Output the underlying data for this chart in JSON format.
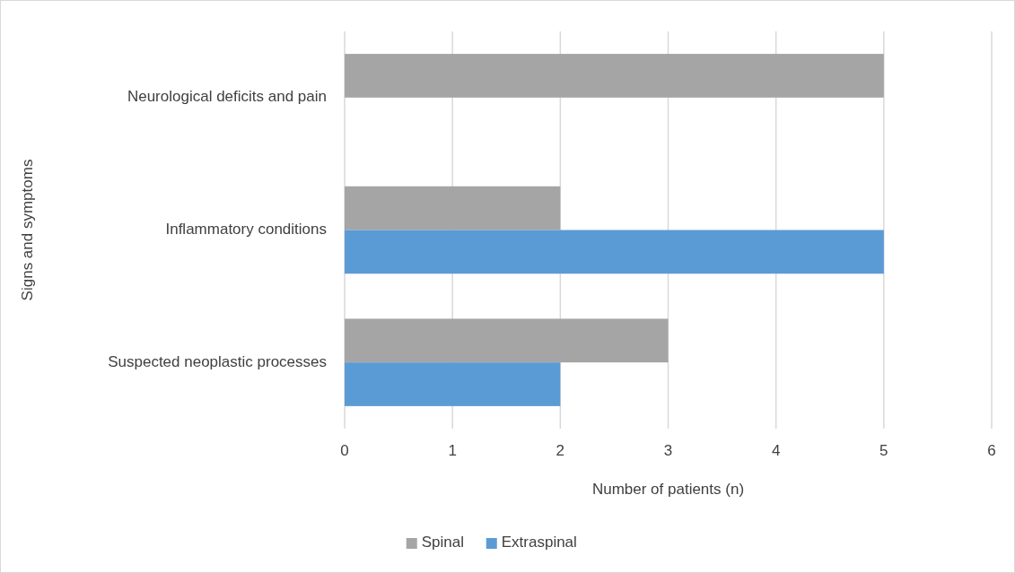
{
  "chart_data": {
    "type": "bar",
    "orientation": "horizontal",
    "xlabel": "Number of patients (n)",
    "ylabel": "Signs and symptoms",
    "categories": [
      "Neurological deficits and pain",
      "Inflammatory conditions",
      "Suspected neoplastic processes"
    ],
    "series": [
      {
        "name": "Spinal",
        "color": "#a5a5a5",
        "values": [
          5,
          2,
          3
        ]
      },
      {
        "name": "Extraspinal",
        "color": "#5b9bd5",
        "values": [
          0,
          5,
          2
        ]
      }
    ],
    "xlim": [
      0,
      6
    ],
    "xticks": [
      0,
      1,
      2,
      3,
      4,
      5,
      6
    ],
    "grid": "x",
    "legend": "bottom"
  }
}
